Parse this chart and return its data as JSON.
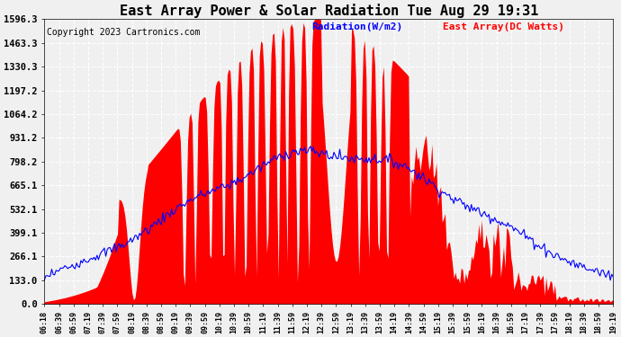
{
  "title": "East Array Power & Solar Radiation Tue Aug 29 19:31",
  "copyright": "Copyright 2023 Cartronics.com",
  "legend_radiation": "Radiation(W/m2)",
  "legend_array": "East Array(DC Watts)",
  "radiation_color": "blue",
  "array_color": "red",
  "background_color": "#f0f0f0",
  "grid_color": "#aaaaaa",
  "yticks": [
    0.0,
    133.0,
    266.1,
    399.1,
    532.1,
    665.1,
    798.2,
    931.2,
    1064.2,
    1197.2,
    1330.3,
    1463.3,
    1596.3
  ],
  "ymax": 1596.3,
  "xtick_labels": [
    "06:18",
    "06:39",
    "06:59",
    "07:19",
    "07:39",
    "07:59",
    "08:19",
    "08:39",
    "08:59",
    "09:19",
    "09:39",
    "09:59",
    "10:19",
    "10:39",
    "10:59",
    "11:19",
    "11:39",
    "11:59",
    "12:19",
    "12:39",
    "12:59",
    "13:19",
    "13:39",
    "13:59",
    "14:19",
    "14:39",
    "14:59",
    "15:19",
    "15:39",
    "15:59",
    "16:19",
    "16:39",
    "16:59",
    "17:19",
    "17:39",
    "17:59",
    "18:19",
    "18:39",
    "18:59",
    "19:19"
  ],
  "title_fontsize": 11,
  "copyright_fontsize": 7,
  "legend_fontsize": 8,
  "ytick_fontsize": 7.5,
  "xtick_fontsize": 6
}
